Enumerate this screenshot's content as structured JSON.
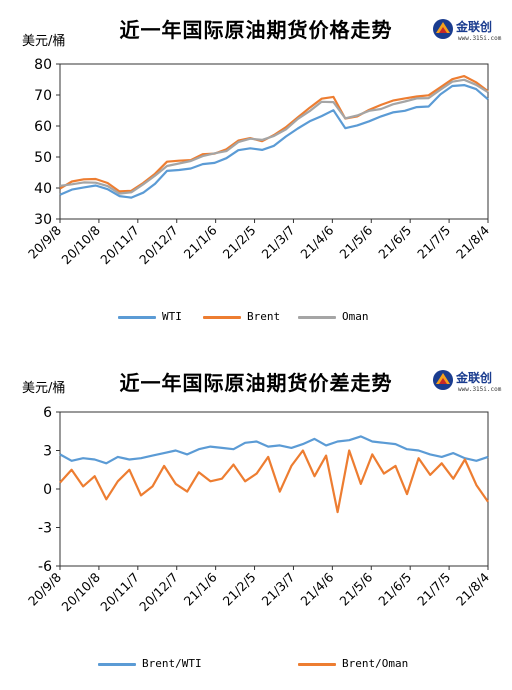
{
  "chart_data": [
    {
      "type": "line",
      "title": "近一年国际原油期货价格走势",
      "ylabel": "美元/桶",
      "ylim": [
        30,
        80
      ],
      "yticks": [
        "30",
        "40",
        "50",
        "60",
        "70",
        "80"
      ],
      "xticks": [
        "20/9/8",
        "20/10/8",
        "20/11/7",
        "20/12/7",
        "21/1/6",
        "21/2/5",
        "21/3/7",
        "21/4/6",
        "21/5/6",
        "21/6/5",
        "21/7/5",
        "21/8/4"
      ],
      "legend_position": "bottom",
      "grid": false,
      "series": [
        {
          "name": "WTI",
          "color": "#5b9bd5",
          "values": [
            37.8,
            39.5,
            40.2,
            40.8,
            39.6,
            37.4,
            36.9,
            38.5,
            41.4,
            45.5,
            45.8,
            46.3,
            47.7,
            48.1,
            49.6,
            52.2,
            52.8,
            52.3,
            53.6,
            56.6,
            59.2,
            61.5,
            63.2,
            65.1,
            59.3,
            60.2,
            61.5,
            63.1,
            64.4,
            64.9,
            66.1,
            66.3,
            70.2,
            72.9,
            73.2,
            71.9,
            68.6
          ]
        },
        {
          "name": "Brent",
          "color": "#ed7d31",
          "values": [
            39.8,
            42.1,
            42.8,
            42.9,
            41.6,
            38.9,
            39.1,
            41.6,
            44.6,
            48.5,
            48.8,
            49.0,
            50.9,
            51.1,
            52.5,
            55.3,
            56.1,
            55.1,
            57.1,
            59.6,
            62.8,
            65.9,
            68.8,
            69.4,
            62.4,
            63.1,
            65.2,
            66.8,
            68.2,
            68.9,
            69.5,
            69.9,
            72.5,
            75.1,
            76.1,
            74.1,
            71.2
          ]
        },
        {
          "name": "Oman",
          "color": "#a5a5a5",
          "values": [
            40.7,
            41.2,
            41.8,
            41.7,
            40.6,
            38.2,
            38.6,
            41.2,
            44.0,
            47.1,
            47.9,
            48.7,
            50.3,
            51.2,
            51.9,
            54.8,
            55.9,
            55.5,
            56.8,
            58.9,
            62.3,
            64.8,
            67.8,
            67.7,
            62.5,
            63.4,
            64.9,
            65.5,
            67.0,
            67.9,
            68.9,
            69.0,
            71.7,
            74.3,
            74.9,
            73.3,
            70.9
          ]
        }
      ]
    },
    {
      "type": "line",
      "title": "近一年国际原油期货价差走势",
      "ylabel": "美元/桶",
      "ylim": [
        -6,
        6
      ],
      "yticks": [
        "-6",
        "-3",
        "0",
        "3",
        "6"
      ],
      "xticks": [
        "20/9/8",
        "20/10/8",
        "20/11/7",
        "20/12/7",
        "21/1/6",
        "21/2/5",
        "21/3/7",
        "21/4/6",
        "21/5/6",
        "21/6/5",
        "21/7/5",
        "21/8/4"
      ],
      "legend_position": "bottom",
      "grid": false,
      "series": [
        {
          "name": "Brent/WTI",
          "color": "#5b9bd5",
          "values": [
            2.7,
            2.2,
            2.4,
            2.3,
            2.0,
            2.5,
            2.3,
            2.4,
            2.6,
            2.8,
            3.0,
            2.7,
            3.1,
            3.3,
            3.2,
            3.1,
            3.6,
            3.7,
            3.3,
            3.4,
            3.2,
            3.5,
            3.9,
            3.4,
            3.7,
            3.8,
            4.1,
            3.7,
            3.6,
            3.5,
            3.1,
            3.0,
            2.7,
            2.5,
            2.8,
            2.4,
            2.2,
            2.5
          ]
        },
        {
          "name": "Brent/Oman",
          "color": "#ed7d31",
          "values": [
            0.5,
            1.5,
            0.2,
            1.0,
            -0.8,
            0.6,
            1.5,
            -0.5,
            0.2,
            1.8,
            0.4,
            -0.2,
            1.3,
            0.6,
            0.8,
            1.9,
            0.6,
            1.2,
            2.5,
            -0.2,
            1.8,
            3.0,
            1.0,
            2.6,
            -1.8,
            3.0,
            0.4,
            2.7,
            1.2,
            1.8,
            -0.4,
            2.4,
            1.1,
            2.0,
            0.8,
            2.3,
            0.3,
            -1.0
          ]
        }
      ]
    }
  ],
  "logo": {
    "name": "金联创",
    "site": "www.315i.com"
  }
}
